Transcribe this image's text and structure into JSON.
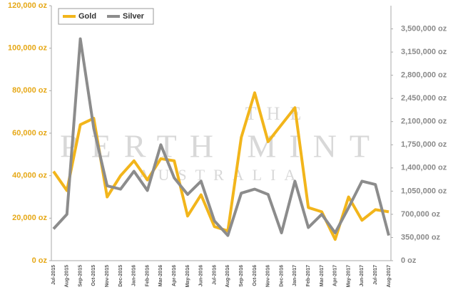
{
  "chart_data": {
    "type": "line",
    "watermark": [
      "THE",
      "PERTH MINT",
      "AUSTRALIA"
    ],
    "categories": [
      "Jul-2015",
      "Aug-2015",
      "Sep-2015",
      "Oct-2015",
      "Nov-2015",
      "Dec-2015",
      "Jan-2016",
      "Feb-2016",
      "Mar-2016",
      "Apr-2016",
      "May-2016",
      "Jun-2016",
      "Jul-2016",
      "Aug-2016",
      "Sep-2016",
      "Oct-2016",
      "Nov-2016",
      "Dec-2016",
      "Jan-2017",
      "Feb-2017",
      "Mar-2017",
      "Apr-2017",
      "May-2017",
      "Jun-2017",
      "Jul-2017",
      "Aug-2017"
    ],
    "series": [
      {
        "name": "Gold",
        "color": "#f2b51b",
        "values": [
          42000,
          33000,
          64000,
          67000,
          30000,
          40000,
          47000,
          38000,
          48000,
          47000,
          21000,
          31000,
          16000,
          14000,
          58000,
          79000,
          56000,
          64000,
          72000,
          25000,
          23000,
          10000,
          30000,
          19000,
          24000,
          23000
        ]
      },
      {
        "name": "Silver",
        "color": "#8c8c8c",
        "axis": "y2",
        "values": [
          480000,
          700000,
          3350000,
          2000000,
          1130000,
          1080000,
          1350000,
          1060000,
          1750000,
          1250000,
          1000000,
          1200000,
          600000,
          380000,
          1020000,
          1080000,
          1000000,
          420000,
          1200000,
          500000,
          700000,
          420000,
          800000,
          1200000,
          1150000,
          380000
        ]
      }
    ],
    "ylim": [
      0,
      120000
    ],
    "yticks": [
      {
        "value": 0,
        "label": "0 oz"
      },
      {
        "value": 20000,
        "label": "20,000 oz"
      },
      {
        "value": 40000,
        "label": "40,000 oz"
      },
      {
        "value": 60000,
        "label": "60,000 oz"
      },
      {
        "value": 80000,
        "label": "80,000 oz"
      },
      {
        "value": 100000,
        "label": "100,000 oz"
      },
      {
        "value": 120000,
        "label": "120,000 oz"
      }
    ],
    "y2lim": [
      0,
      3850000
    ],
    "y2ticks": [
      {
        "value": 0,
        "label": "0 oz"
      },
      {
        "value": 350000,
        "label": "350,000 oz"
      },
      {
        "value": 700000,
        "label": "700,000 oz"
      },
      {
        "value": 1050000,
        "label": "1,050,000 oz"
      },
      {
        "value": 1400000,
        "label": "1,400,000 oz"
      },
      {
        "value": 1750000,
        "label": "1,750,000 oz"
      },
      {
        "value": 2100000,
        "label": "2,100,000 oz"
      },
      {
        "value": 2450000,
        "label": "2,450,000 oz"
      },
      {
        "value": 2800000,
        "label": "2,800,000 oz"
      },
      {
        "value": 3150000,
        "label": "3,150,000 oz"
      },
      {
        "value": 3500000,
        "label": "3,500,000 oz"
      }
    ]
  }
}
